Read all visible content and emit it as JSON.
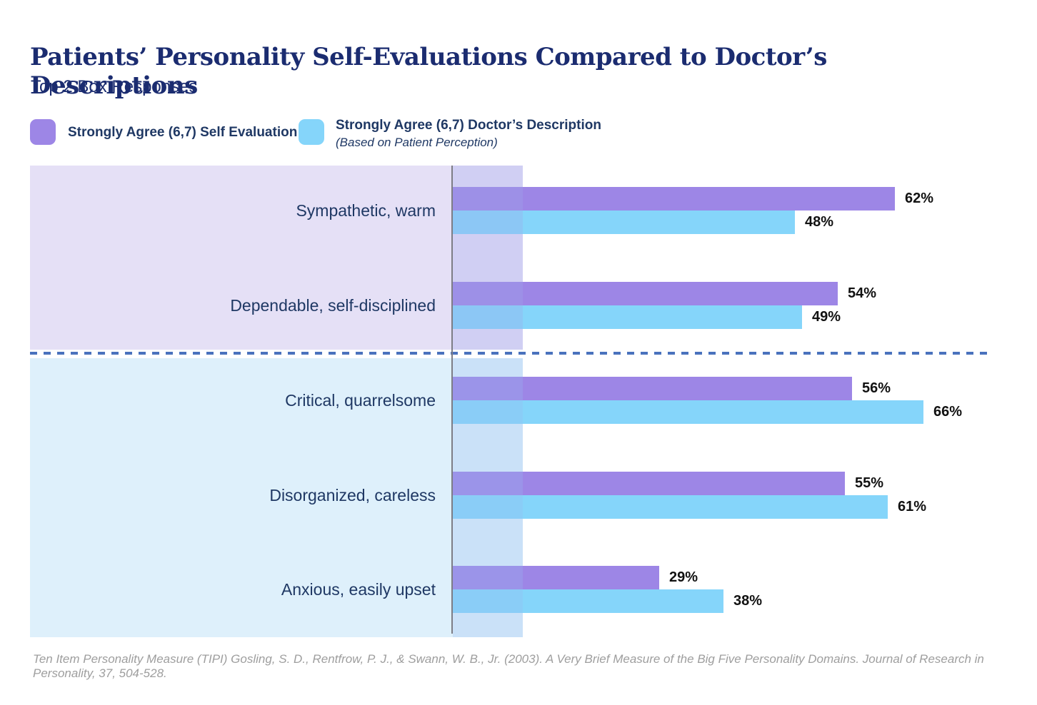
{
  "header": {
    "title": "Patients’ Personality Self-Evaluations Compared to Doctor’s Descriptions",
    "subtitle": "Top 2 Box Responses"
  },
  "legend": {
    "self": {
      "label": "Strongly Agree (6,7) Self Evaluation",
      "color": "#9d86e6"
    },
    "doctor": {
      "label": "Strongly Agree (6,7) Doctor’s Description",
      "sublabel": "(Based on Patient Perception)",
      "color": "#85d5fa"
    }
  },
  "chart_data": {
    "type": "bar",
    "orientation": "horizontal",
    "title": "Patients’ Personality Self-Evaluations Compared to Doctor’s Descriptions",
    "subtitle": "Top 2 Box Responses",
    "categories": [
      "Sympathetic, warm",
      "Dependable, self-disciplined",
      "Critical, quarrelsome",
      "Disorganized, careless",
      "Anxious, easily upset"
    ],
    "series": [
      {
        "name": "Strongly Agree (6,7) Self Evaluation",
        "color": "#9d86e6",
        "values": [
          62,
          54,
          56,
          55,
          29
        ]
      },
      {
        "name": "Strongly Agree (6,7) Doctor’s Description (Based on Patient Perception)",
        "color": "#85d5fa",
        "values": [
          48,
          49,
          66,
          61,
          38
        ]
      }
    ],
    "value_suffix": "%",
    "xlim": [
      0,
      75
    ],
    "grid": false,
    "legend_position": "top",
    "groups": [
      {
        "name": "positive-traits",
        "category_indexes": [
          0,
          1
        ],
        "background": "#e5e0f6"
      },
      {
        "name": "negative-traits",
        "category_indexes": [
          2,
          3,
          4
        ],
        "background": "#def0fb"
      }
    ],
    "divider_color": "#4a72bd"
  },
  "footer": {
    "source": "Ten Item Personality Measure (TIPI) Gosling, S. D., Rentfrow, P. J., & Swann, W. B., Jr. (2003). A Very Brief Measure of the Big Five Personality Domains. Journal of Research in Personality, 37, 504-528."
  }
}
